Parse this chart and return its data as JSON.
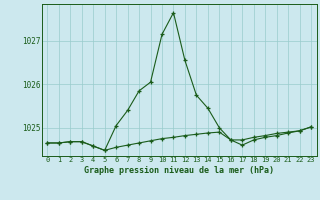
{
  "hours": [
    0,
    1,
    2,
    3,
    4,
    5,
    6,
    7,
    8,
    9,
    10,
    11,
    12,
    13,
    14,
    15,
    16,
    17,
    18,
    19,
    20,
    21,
    22,
    23
  ],
  "pressure_line1": [
    1024.65,
    1024.65,
    1024.68,
    1024.68,
    1024.58,
    1024.48,
    1025.05,
    1025.4,
    1025.85,
    1026.05,
    1027.15,
    1027.65,
    1026.55,
    1025.75,
    1025.45,
    1025.0,
    1024.72,
    1024.72,
    1024.78,
    1024.82,
    1024.87,
    1024.9,
    1024.93,
    1025.02
  ],
  "pressure_line2": [
    1024.65,
    1024.65,
    1024.68,
    1024.68,
    1024.58,
    1024.48,
    1024.55,
    1024.6,
    1024.65,
    1024.7,
    1024.75,
    1024.78,
    1024.82,
    1024.85,
    1024.88,
    1024.9,
    1024.72,
    1024.6,
    1024.72,
    1024.78,
    1024.82,
    1024.88,
    1024.93,
    1025.02
  ],
  "line_color": "#1a5c1a",
  "marker": "+",
  "bg_color": "#cce8ee",
  "grid_color": "#99cccc",
  "title": "Graphe pression niveau de la mer (hPa)",
  "ylim_min": 1024.35,
  "ylim_max": 1027.85,
  "yticks": [
    1025,
    1026,
    1027
  ],
  "xlim_min": -0.5,
  "xlim_max": 23.5
}
